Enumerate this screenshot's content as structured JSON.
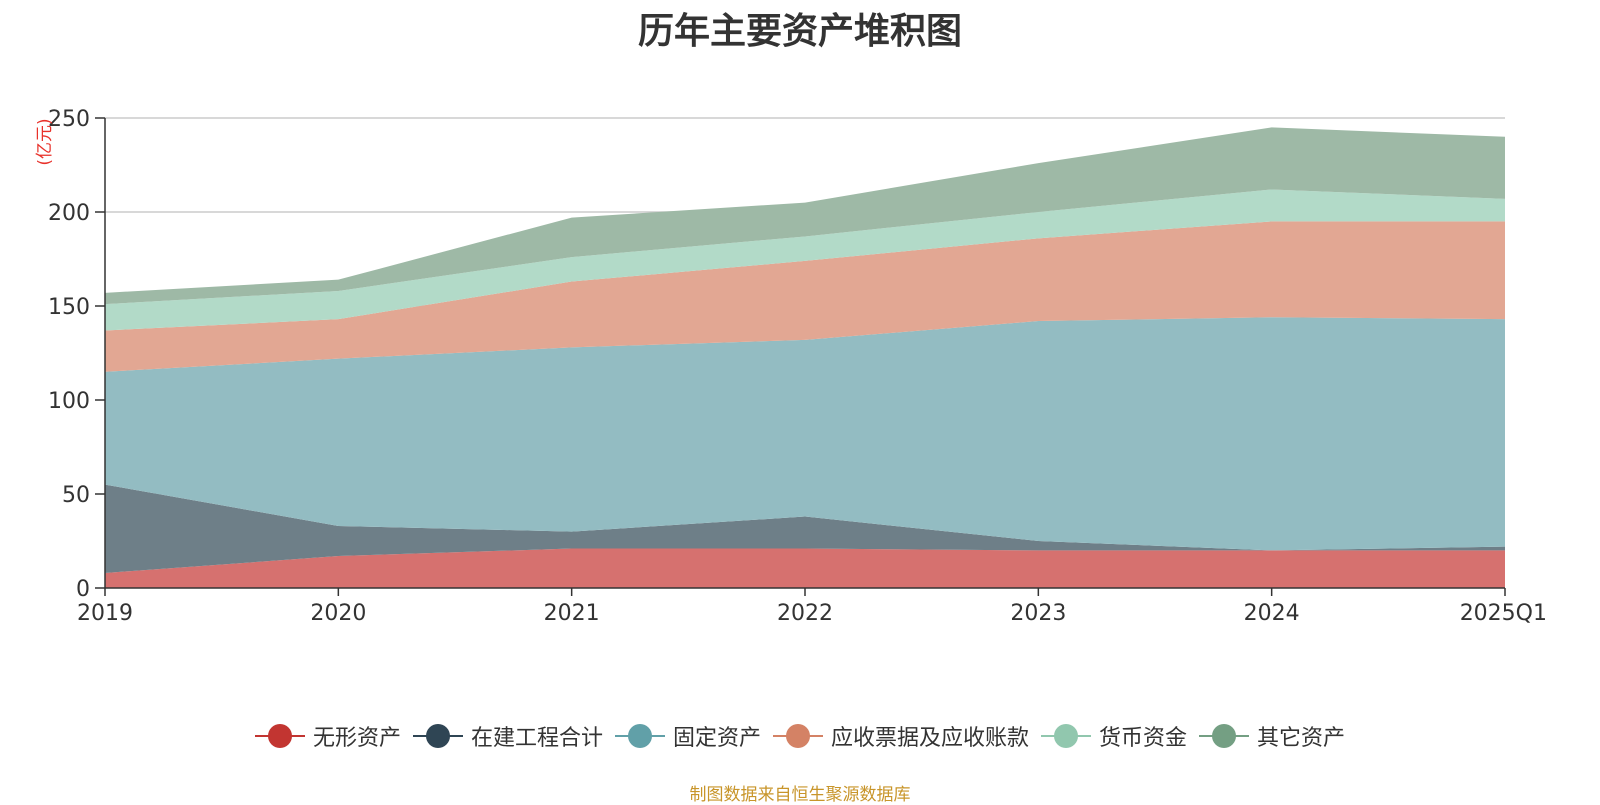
{
  "chart_data": {
    "type": "area",
    "stacked": true,
    "title": "历年主要资产堆积图",
    "unit_label": "(亿元)",
    "categories": [
      "2019",
      "2020",
      "2021",
      "2022",
      "2023",
      "2024",
      "2025Q1"
    ],
    "ylim": [
      0,
      250
    ],
    "yticks": [
      0,
      50,
      100,
      150,
      200,
      250
    ],
    "grid": true,
    "legend_position": "bottom",
    "series": [
      {
        "name": "无形资产",
        "line_color": "#c23531",
        "fill_color": "#d6716f",
        "values": [
          8,
          17,
          21,
          21,
          20,
          20,
          20
        ]
      },
      {
        "name": "在建工程合计",
        "line_color": "#2f4554",
        "fill_color": "#6e7f88",
        "values": [
          47,
          16,
          9,
          17,
          5,
          0,
          2
        ]
      },
      {
        "name": "固定资产",
        "line_color": "#61a0a8",
        "fill_color": "#93bcc2",
        "values": [
          60,
          89,
          98,
          94,
          117,
          124,
          121
        ]
      },
      {
        "name": "应收票据及应收账款",
        "line_color": "#d48265",
        "fill_color": "#e2a793",
        "values": [
          22,
          21,
          35,
          42,
          44,
          51,
          52
        ]
      },
      {
        "name": "货币资金",
        "line_color": "#91c7ae",
        "fill_color": "#b2dac8",
        "values": [
          14,
          15,
          13,
          13,
          14,
          17,
          12
        ]
      },
      {
        "name": "其它资产",
        "line_color": "#749f83",
        "fill_color": "#9eb9a6",
        "values": [
          6,
          6,
          21,
          18,
          26,
          33,
          33
        ]
      }
    ]
  },
  "source_note": "制图数据来自恒生聚源数据库"
}
